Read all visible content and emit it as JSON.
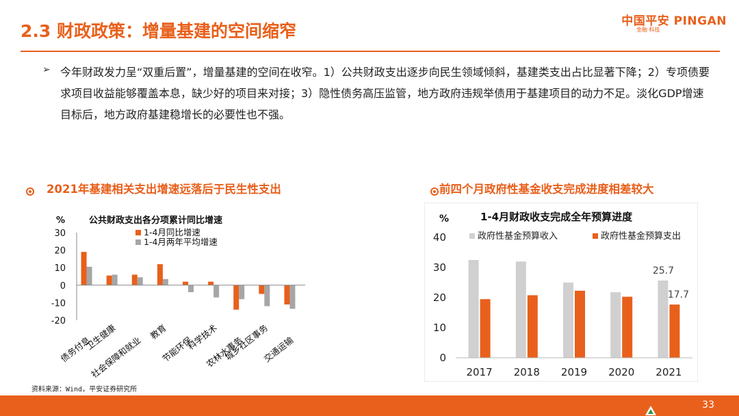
{
  "header": {
    "title": "2.3 财政政策：增量基建的空间缩窄",
    "logo_text": "中国平安 PINGAN",
    "logo_sub": "金融·科技"
  },
  "bullet": {
    "mark": "➢",
    "text": "今年财政发力呈“双重后置”，增量基建的空间在收窄。1）公共财政支出逐步向民生领域倾斜，基建类支出占比显著下降；2）专项债要求项目收益能够覆盖本息，缺少好的项目来对接；3）隐性债务高压监管，地方政府违规举债用于基建项目的动力不足。淡化GDP增速目标后，地方政府基建稳增长的必要性也不强。"
  },
  "sections": {
    "left_title": "2021年基建相关支出增速远落后于民生性支出",
    "right_title": "前四个月政府性基金收支完成进度相差较大"
  },
  "source": "资料来源：Wind，平安证券研究所",
  "footer": {
    "page_number": "33"
  },
  "colors": {
    "accent": "#e8601c",
    "gray": "#a6a6a6"
  },
  "chart_data": [
    {
      "type": "bar",
      "title": "公共财政支出各分项累计同比增速",
      "ylabel": "%",
      "ylim": [
        -20,
        30
      ],
      "yticks": [
        30,
        20,
        10,
        0,
        -10,
        -20
      ],
      "categories": [
        "债务付息",
        "卫生健康",
        "社会保障和就业",
        "教育",
        "节能环保",
        "科学技术",
        "农林水事务",
        "城乡社区事务",
        "交通运输"
      ],
      "series": [
        {
          "name": "1-4月同比增速",
          "color": "#e8601c",
          "values": [
            19.0,
            5.5,
            6.0,
            12.0,
            2.0,
            2.0,
            -14.0,
            -5.0,
            -11.0
          ]
        },
        {
          "name": "1-4月两年平均增速",
          "color": "#a6a6a6",
          "values": [
            10.5,
            6.0,
            4.5,
            3.5,
            -4.0,
            -7.0,
            -8.0,
            -12.0,
            -13.5
          ]
        }
      ]
    },
    {
      "type": "bar",
      "title": "1-4月财政收支完成全年预算进度",
      "ylabel": "%",
      "ylim": [
        0,
        40
      ],
      "yticks": [
        40,
        30,
        20,
        10,
        0
      ],
      "categories": [
        "2017",
        "2018",
        "2019",
        "2020",
        "2021"
      ],
      "series": [
        {
          "name": "政府性基金预算收入",
          "color": "#d0d0d0",
          "values": [
            32.5,
            32.0,
            25.0,
            21.8,
            25.7
          ]
        },
        {
          "name": "政府性基金预算支出",
          "color": "#e8601c",
          "values": [
            19.5,
            20.8,
            22.3,
            20.3,
            17.7
          ]
        }
      ],
      "data_labels": [
        {
          "series": 0,
          "index": 4,
          "text": "25.7"
        },
        {
          "series": 1,
          "index": 4,
          "text": "17.7"
        }
      ]
    }
  ]
}
